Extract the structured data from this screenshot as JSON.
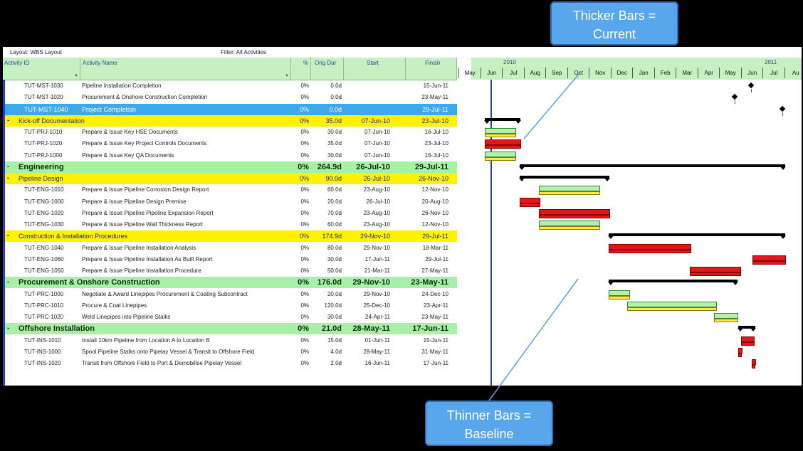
{
  "layout_label": "Layout: WBS Layout",
  "filter_label": "Filter: All Activities",
  "columns": {
    "id": "Activity ID",
    "name": "Activity Name",
    "pct": "%",
    "dur": "Orig Dur",
    "start": "Start",
    "finish": "Finish"
  },
  "rows": [
    {
      "type": "task",
      "id": "TUT-MST-1030",
      "name": "Pipeline Installation Completion",
      "pct": "0%",
      "dur": "0.0d",
      "start": "",
      "finish": "15-Jun-11"
    },
    {
      "type": "task",
      "id": "TUT-MST-1020",
      "name": "Procurement & Onshore Construction Completion",
      "pct": "0%",
      "dur": "0.0d",
      "start": "",
      "finish": "23-May-11"
    },
    {
      "type": "sel",
      "id": "TUT-MST-1040",
      "name": "Project Completion",
      "pct": "0%",
      "dur": "0.0d",
      "start": "",
      "finish": "29-Jul-11"
    },
    {
      "type": "wbs1",
      "toggle": "-",
      "id": "Kick-off Documentation",
      "pct": "0%",
      "dur": "35.0d",
      "start": "07-Jun-10",
      "finish": "23-Jul-10"
    },
    {
      "type": "task",
      "id": "TUT-PRJ-1010",
      "name": "Prepare & Issue Key HSE Documents",
      "pct": "0%",
      "dur": "30.0d",
      "start": "07-Jun-10",
      "finish": "16-Jul-10"
    },
    {
      "type": "task",
      "id": "TUT-PRJ-1020",
      "name": "Prepare & Issue Key Project Controls Documents",
      "pct": "0%",
      "dur": "35.0d",
      "start": "07-Jun-10",
      "finish": "23-Jul-10"
    },
    {
      "type": "task",
      "id": "TUT-PRJ-1000",
      "name": "Prepare & Issue Key QA Documents",
      "pct": "0%",
      "dur": "30.0d",
      "start": "07-Jun-10",
      "finish": "16-Jul-10"
    },
    {
      "type": "wbs0",
      "toggle": "-",
      "id": "Engineering",
      "pct": "0%",
      "dur": "264.9d",
      "start": "26-Jul-10",
      "finish": "29-Jul-11"
    },
    {
      "type": "wbs1",
      "toggle": "-",
      "id": "Pipeline Design",
      "pct": "0%",
      "dur": "90.0d",
      "start": "26-Jul-10",
      "finish": "26-Nov-10"
    },
    {
      "type": "task",
      "id": "TUT-ENG-1010",
      "name": "Prepare & Issue Pipeline Corrosion Design Report",
      "pct": "0%",
      "dur": "60.0d",
      "start": "23-Aug-10",
      "finish": "12-Nov-10"
    },
    {
      "type": "task",
      "id": "TUT-ENG-1000",
      "name": "Prepare & Issue Pipeline Design Premise",
      "pct": "0%",
      "dur": "20.0d",
      "start": "26-Jul-10",
      "finish": "20-Aug-10"
    },
    {
      "type": "task",
      "id": "TUT-ENG-1020",
      "name": "Prepare & Issue Pipeline Pipeline Expansion Report",
      "pct": "0%",
      "dur": "70.0d",
      "start": "23-Aug-10",
      "finish": "26-Nov-10"
    },
    {
      "type": "task",
      "id": "TUT-ENG-1030",
      "name": "Prepare & Issue Pipeline Wall Thickness Report",
      "pct": "0%",
      "dur": "60.0d",
      "start": "23-Aug-10",
      "finish": "12-Nov-10"
    },
    {
      "type": "wbs1",
      "toggle": "-",
      "id": "Construction & Installation Procedures",
      "pct": "0%",
      "dur": "174.9d",
      "start": "29-Nov-10",
      "finish": "29-Jul-11"
    },
    {
      "type": "task",
      "id": "TUT-ENG-1040",
      "name": "Prepare & Issue Pipeline Installation Analysis",
      "pct": "0%",
      "dur": "80.0d",
      "start": "29-Nov-10",
      "finish": "18-Mar-11"
    },
    {
      "type": "task",
      "id": "TUT-ENG-1060",
      "name": "Prepare & Issue Pipeline Installation As Built Report",
      "pct": "0%",
      "dur": "30.0d",
      "start": "17-Jun-11",
      "finish": "29-Jul-11"
    },
    {
      "type": "task",
      "id": "TUT-ENG-1050",
      "name": "Prepare & Issue Pipeline Installation Procedure",
      "pct": "0%",
      "dur": "50.0d",
      "start": "21-Mar-11",
      "finish": "27-May-11"
    },
    {
      "type": "wbs0",
      "toggle": "-",
      "id": "Procurement & Onshore Construction",
      "pct": "0%",
      "dur": "176.0d",
      "start": "29-Nov-10",
      "finish": "23-May-11"
    },
    {
      "type": "task",
      "id": "TUT-PRC-1000",
      "name": "Negotiate & Award Linepipes Procurement & Coating Subcontract",
      "pct": "0%",
      "dur": "20.0d",
      "start": "29-Nov-10",
      "finish": "24-Dec-10"
    },
    {
      "type": "task",
      "id": "TUT-PRC-1010",
      "name": "Procure & Coat Linepipes",
      "pct": "0%",
      "dur": "120.0d",
      "start": "25-Dec-10",
      "finish": "23-Apr-11"
    },
    {
      "type": "task",
      "id": "TUT-PRC-1020",
      "name": "Weld Linepipes into Pipeline Stalks",
      "pct": "0%",
      "dur": "30.0d",
      "start": "24-Apr-11",
      "finish": "23-May-11"
    },
    {
      "type": "wbs0",
      "toggle": "-",
      "id": "Offshore Installation",
      "pct": "0%",
      "dur": "21.0d",
      "start": "28-May-11",
      "finish": "17-Jun-11"
    },
    {
      "type": "task",
      "id": "TUT-INS-1010",
      "name": "Install 10km Pipeline from Location A to Location B",
      "pct": "0%",
      "dur": "15.0d",
      "start": "01-Jun-11",
      "finish": "15-Jun-11"
    },
    {
      "type": "task",
      "id": "TUT-INS-1000",
      "name": "Spool Pipeline Stalks onto Pipelay Vessel & Transit to Offshore Field",
      "pct": "0%",
      "dur": "4.0d",
      "start": "28-May-11",
      "finish": "31-May-11"
    },
    {
      "type": "task",
      "id": "TUT-INS-1020",
      "name": "Transit from Offshore Field to Port & Demobilise Pipelay Vessel",
      "pct": "0%",
      "dur": "2.0d",
      "start": "16-Jun-11",
      "finish": "17-Jun-11"
    }
  ],
  "gantt": {
    "years": [
      "2010",
      "2011"
    ],
    "months": [
      "May",
      "Jun",
      "Jul",
      "Aug",
      "Sep",
      "Oct",
      "Nov",
      "Dec",
      "Jan",
      "Feb",
      "Mar",
      "Apr",
      "May",
      "Jun",
      "Jul",
      "Au"
    ]
  },
  "callouts": {
    "current": "Thicker Bars = Current",
    "baseline": "Thinner Bars = Baseline"
  },
  "colors": {
    "wbs_yellow": "#fff200",
    "wbs_green": "#a8f0a8",
    "selected": "#3ca9ec",
    "critical": "#e01818",
    "current_bar": "#b7efb0",
    "baseline_bar": "#ffe94d"
  }
}
